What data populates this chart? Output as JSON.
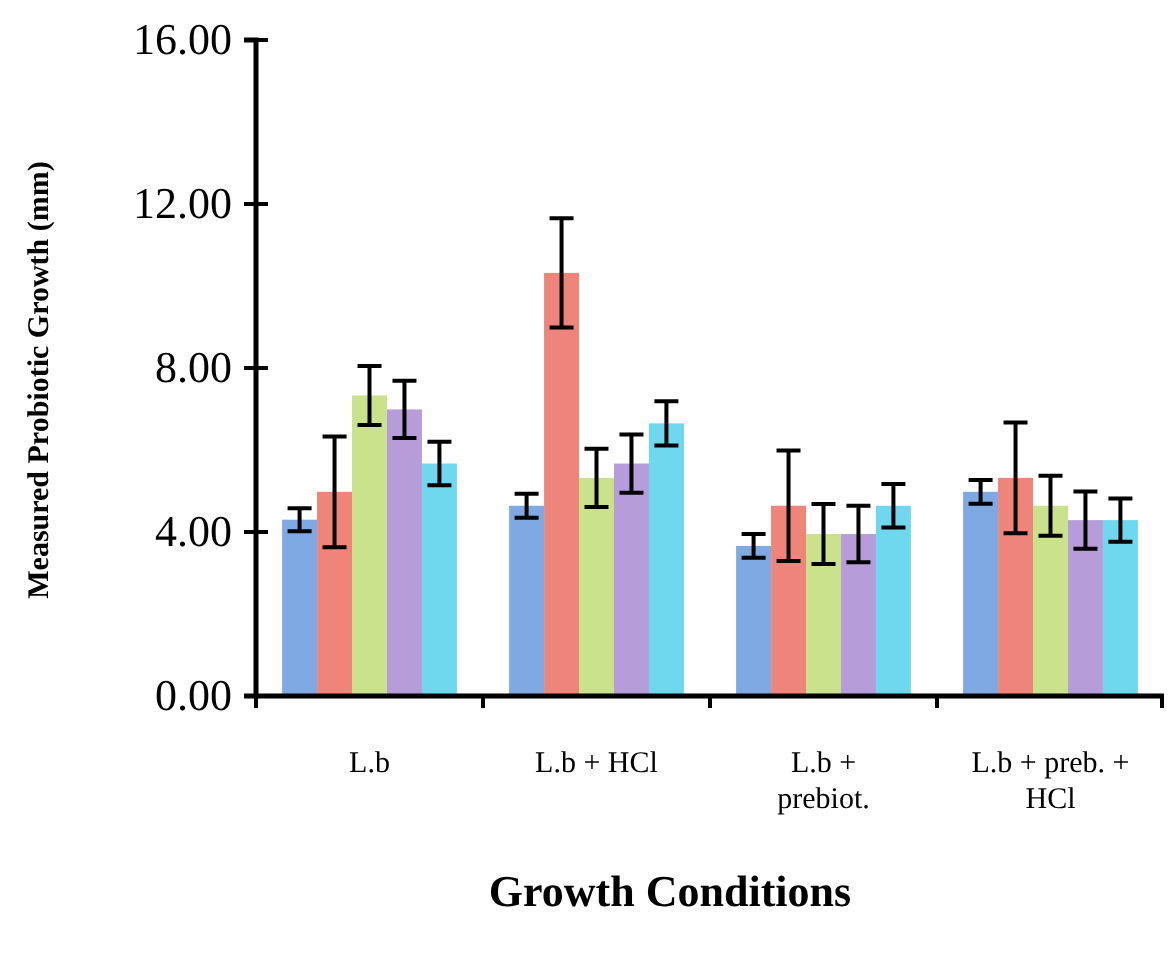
{
  "chart_data": {
    "type": "bar",
    "xlabel": "Growth Conditions",
    "ylabel": "Measured Probiotic Growth (mm)",
    "categories": [
      "L.b",
      "L.b + HCl",
      "L.b + prebiot.",
      "L.b + preb. + HCl"
    ],
    "series": [
      {
        "color": "#7fa9e2",
        "values": [
          4.3,
          4.64,
          3.66,
          4.98
        ],
        "errors": [
          0.28,
          0.29,
          0.29,
          0.29
        ]
      },
      {
        "color": "#ef847b",
        "values": [
          4.98,
          10.32,
          4.64,
          5.32
        ],
        "errors": [
          1.35,
          1.33,
          1.35,
          1.35
        ]
      },
      {
        "color": "#cbe28c",
        "values": [
          7.33,
          5.32,
          3.95,
          4.64
        ],
        "errors": [
          0.72,
          0.71,
          0.73,
          0.73
        ]
      },
      {
        "color": "#b69cd8",
        "values": [
          6.99,
          5.67,
          3.95,
          4.29
        ],
        "errors": [
          0.7,
          0.71,
          0.69,
          0.7
        ]
      },
      {
        "color": "#70d8ee",
        "values": [
          5.67,
          6.65,
          4.64,
          4.29
        ],
        "errors": [
          0.53,
          0.54,
          0.53,
          0.53
        ]
      }
    ],
    "ylim": [
      0,
      16
    ],
    "yticks": [
      {
        "value": 0,
        "label": "0.00"
      },
      {
        "value": 4,
        "label": "4.00"
      },
      {
        "value": 8,
        "label": "8.00"
      },
      {
        "value": 12,
        "label": "12.00"
      },
      {
        "value": 16,
        "label": "16.00"
      }
    ],
    "grid": false
  }
}
